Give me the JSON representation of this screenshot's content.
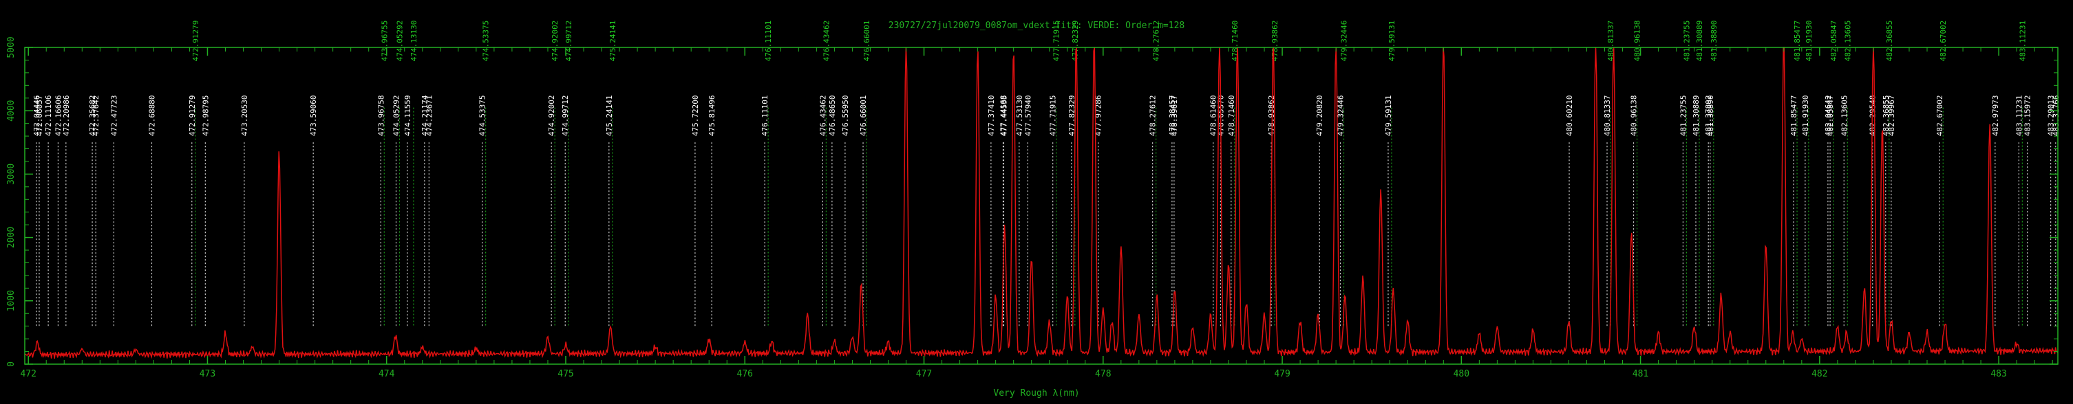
{
  "colors": {
    "background": "#000000",
    "axis": "#22b022",
    "spectrum": "#e01010",
    "label_white": "#ffffff",
    "label_green": "#22cc22"
  },
  "chart_data": {
    "type": "line",
    "title": "230727/27jul20079_0087om_vdext.fits: VERDE: Order m=128",
    "xlabel": "Very Rough λ(nm)",
    "ylabel": "",
    "xlim": [
      471.98,
      483.33
    ],
    "ylim": [
      0,
      5000
    ],
    "x_ticks": [
      472,
      473,
      474,
      475,
      476,
      477,
      478,
      479,
      480,
      481,
      482,
      483
    ],
    "x_tick_labels": [
      "472",
      "473",
      "474",
      "475",
      "476",
      "477",
      "478",
      "479",
      "480",
      "481",
      "482",
      "483"
    ],
    "y_ticks": [
      0,
      1000,
      2000,
      3000,
      4000,
      5000
    ],
    "y_tick_labels": [
      "0",
      "1000",
      "2000",
      "3000",
      "4000",
      "5000"
    ],
    "grid": false,
    "series": [
      {
        "values_baseline": 150,
        "peaks": [
          [
            472.05,
            200
          ],
          [
            472.3,
            90
          ],
          [
            472.6,
            80
          ],
          [
            473.1,
            330
          ],
          [
            473.25,
            120
          ],
          [
            473.4,
            3200
          ],
          [
            474.05,
            300
          ],
          [
            474.2,
            110
          ],
          [
            474.5,
            90
          ],
          [
            474.9,
            260
          ],
          [
            475.0,
            140
          ],
          [
            475.25,
            430
          ],
          [
            475.5,
            110
          ],
          [
            475.8,
            230
          ],
          [
            476.0,
            180
          ],
          [
            476.15,
            190
          ],
          [
            476.35,
            620
          ],
          [
            476.5,
            200
          ],
          [
            476.6,
            260
          ],
          [
            476.65,
            1100
          ],
          [
            476.8,
            180
          ],
          [
            476.9,
            5000
          ],
          [
            477.3,
            4850
          ],
          [
            477.4,
            900
          ],
          [
            477.45,
            2000
          ],
          [
            477.5,
            4800
          ],
          [
            477.6,
            1500
          ],
          [
            477.7,
            500
          ],
          [
            477.8,
            900
          ],
          [
            477.85,
            5000
          ],
          [
            477.95,
            5000
          ],
          [
            478.0,
            700
          ],
          [
            478.05,
            500
          ],
          [
            478.1,
            1700
          ],
          [
            478.2,
            600
          ],
          [
            478.3,
            900
          ],
          [
            478.4,
            1000
          ],
          [
            478.5,
            400
          ],
          [
            478.6,
            600
          ],
          [
            478.65,
            5000
          ],
          [
            478.7,
            1400
          ],
          [
            478.75,
            5000
          ],
          [
            478.8,
            800
          ],
          [
            478.9,
            600
          ],
          [
            478.95,
            5000
          ],
          [
            479.1,
            500
          ],
          [
            479.2,
            600
          ],
          [
            479.3,
            5000
          ],
          [
            479.35,
            900
          ],
          [
            479.45,
            1200
          ],
          [
            479.55,
            2600
          ],
          [
            479.62,
            1000
          ],
          [
            479.7,
            500
          ],
          [
            479.9,
            5000
          ],
          [
            480.1,
            300
          ],
          [
            480.2,
            400
          ],
          [
            480.4,
            350
          ],
          [
            480.6,
            500
          ],
          [
            480.75,
            5000
          ],
          [
            480.85,
            4850
          ],
          [
            480.95,
            1900
          ],
          [
            481.1,
            300
          ],
          [
            481.3,
            400
          ],
          [
            481.45,
            900
          ],
          [
            481.5,
            300
          ],
          [
            481.7,
            1700
          ],
          [
            481.8,
            5000
          ],
          [
            481.85,
            300
          ],
          [
            481.9,
            200
          ],
          [
            482.1,
            400
          ],
          [
            482.15,
            300
          ],
          [
            482.25,
            1000
          ],
          [
            482.3,
            5000
          ],
          [
            482.35,
            3600
          ],
          [
            482.4,
            500
          ],
          [
            482.5,
            300
          ],
          [
            482.6,
            300
          ],
          [
            482.7,
            450
          ],
          [
            482.95,
            3600
          ],
          [
            483.1,
            120
          ]
        ]
      }
    ],
    "annotations": [
      {
        "x": 472.04446,
        "label": "472.04446",
        "color": "white"
      },
      {
        "x": 472.06057,
        "label": "472.06057",
        "color": "white"
      },
      {
        "x": 472.11106,
        "label": "472.11106",
        "color": "white"
      },
      {
        "x": 472.16606,
        "label": "472.16606",
        "color": "white"
      },
      {
        "x": 472.20986,
        "label": "472.20986",
        "color": "white"
      },
      {
        "x": 472.35682,
        "label": "472.35682",
        "color": "white"
      },
      {
        "x": 472.37642,
        "label": "472.37642",
        "color": "white"
      },
      {
        "x": 472.47723,
        "label": "472.47723",
        "color": "white"
      },
      {
        "x": 472.6888,
        "label": "472.68880",
        "color": "white"
      },
      {
        "x": 472.91279,
        "label": "472.91279",
        "color": "white"
      },
      {
        "x": 472.91279,
        "label": "472.91279",
        "color": "green"
      },
      {
        "x": 472.98795,
        "label": "472.98795",
        "color": "white"
      },
      {
        "x": 473.2053,
        "label": "473.20530",
        "color": "white"
      },
      {
        "x": 473.5906,
        "label": "473.59060",
        "color": "white"
      },
      {
        "x": 473.96758,
        "label": "473.96758",
        "color": "white"
      },
      {
        "x": 473.96755,
        "label": "473.96755",
        "color": "green"
      },
      {
        "x": 474.05292,
        "label": "474.05292",
        "color": "white"
      },
      {
        "x": 474.05292,
        "label": "474.05292",
        "color": "green"
      },
      {
        "x": 474.11559,
        "label": "474.11559",
        "color": "white"
      },
      {
        "x": 474.1313,
        "label": "474.13130",
        "color": "green"
      },
      {
        "x": 474.21174,
        "label": "474.21174",
        "color": "white"
      },
      {
        "x": 474.23671,
        "label": "474.23671",
        "color": "white"
      },
      {
        "x": 474.53375,
        "label": "474.53375",
        "color": "white"
      },
      {
        "x": 474.53375,
        "label": "474.53375",
        "color": "green"
      },
      {
        "x": 474.92002,
        "label": "474.92002",
        "color": "white"
      },
      {
        "x": 474.92002,
        "label": "474.92002",
        "color": "green"
      },
      {
        "x": 474.99712,
        "label": "474.99712",
        "color": "white"
      },
      {
        "x": 474.99712,
        "label": "474.99712",
        "color": "green"
      },
      {
        "x": 475.24141,
        "label": "475.24141",
        "color": "white"
      },
      {
        "x": 475.24141,
        "label": "475.24141",
        "color": "green"
      },
      {
        "x": 475.722,
        "label": "475.72200",
        "color": "white"
      },
      {
        "x": 475.81496,
        "label": "475.81496",
        "color": "white"
      },
      {
        "x": 476.11101,
        "label": "476.11101",
        "color": "white"
      },
      {
        "x": 476.11101,
        "label": "476.11101",
        "color": "green"
      },
      {
        "x": 476.43462,
        "label": "476.43462",
        "color": "white"
      },
      {
        "x": 476.43462,
        "label": "476.43462",
        "color": "green"
      },
      {
        "x": 476.4865,
        "label": "476.48650",
        "color": "white"
      },
      {
        "x": 476.5595,
        "label": "476.55950",
        "color": "white"
      },
      {
        "x": 476.66001,
        "label": "476.66001",
        "color": "white"
      },
      {
        "x": 476.66001,
        "label": "476.66001",
        "color": "green"
      },
      {
        "x": 477.3741,
        "label": "477.37410",
        "color": "white"
      },
      {
        "x": 477.44168,
        "label": "477.44168",
        "color": "white"
      },
      {
        "x": 477.44535,
        "label": "477.44535",
        "color": "white"
      },
      {
        "x": 477.5313,
        "label": "477.53130",
        "color": "white"
      },
      {
        "x": 477.5794,
        "label": "477.57940",
        "color": "white"
      },
      {
        "x": 477.71915,
        "label": "477.71915",
        "color": "white"
      },
      {
        "x": 477.71915,
        "label": "477.71915",
        "color": "green"
      },
      {
        "x": 477.82329,
        "label": "477.82329",
        "color": "white"
      },
      {
        "x": 477.82329,
        "label": "477.82329",
        "color": "green"
      },
      {
        "x": 477.97286,
        "label": "477.97286",
        "color": "white"
      },
      {
        "x": 478.27612,
        "label": "478.27612",
        "color": "white"
      },
      {
        "x": 478.27612,
        "label": "478.27612",
        "color": "green"
      },
      {
        "x": 478.38457,
        "label": "478.38457",
        "color": "white"
      },
      {
        "x": 478.39617,
        "label": "478.39617",
        "color": "white"
      },
      {
        "x": 478.6146,
        "label": "478.61460",
        "color": "white"
      },
      {
        "x": 478.6557,
        "label": "478.65570",
        "color": "white"
      },
      {
        "x": 478.7146,
        "label": "478.71460",
        "color": "white"
      },
      {
        "x": 478.7146,
        "label": "478.71460",
        "color": "green"
      },
      {
        "x": 478.93862,
        "label": "478.93862",
        "color": "white"
      },
      {
        "x": 478.93862,
        "label": "478.93862",
        "color": "green"
      },
      {
        "x": 479.2082,
        "label": "479.20820",
        "color": "white"
      },
      {
        "x": 479.32446,
        "label": "479.32446",
        "color": "white"
      },
      {
        "x": 479.32446,
        "label": "479.32446",
        "color": "green"
      },
      {
        "x": 479.59131,
        "label": "479.59131",
        "color": "white"
      },
      {
        "x": 479.59131,
        "label": "479.59131",
        "color": "green"
      },
      {
        "x": 480.6021,
        "label": "480.60210",
        "color": "white"
      },
      {
        "x": 480.81337,
        "label": "480.81337",
        "color": "white"
      },
      {
        "x": 480.81337,
        "label": "480.81337",
        "color": "green"
      },
      {
        "x": 480.96138,
        "label": "480.96138",
        "color": "white"
      },
      {
        "x": 480.96138,
        "label": "480.96138",
        "color": "green"
      },
      {
        "x": 481.23755,
        "label": "481.23755",
        "color": "white"
      },
      {
        "x": 481.23755,
        "label": "481.23755",
        "color": "green"
      },
      {
        "x": 481.30889,
        "label": "481.30889",
        "color": "white"
      },
      {
        "x": 481.30889,
        "label": "481.30889",
        "color": "green"
      },
      {
        "x": 481.37892,
        "label": "481.37892",
        "color": "white"
      },
      {
        "x": 481.3889,
        "label": "481.38890",
        "color": "white"
      },
      {
        "x": 481.3889,
        "label": "481.38890",
        "color": "green"
      },
      {
        "x": 481.85477,
        "label": "481.85477",
        "color": "white"
      },
      {
        "x": 481.85477,
        "label": "481.85477",
        "color": "green"
      },
      {
        "x": 481.9193,
        "label": "481.91930",
        "color": "white"
      },
      {
        "x": 481.9193,
        "label": "481.91930",
        "color": "green"
      },
      {
        "x": 482.04642,
        "label": "482.04642",
        "color": "white"
      },
      {
        "x": 482.05847,
        "label": "482.05847",
        "color": "white"
      },
      {
        "x": 482.05847,
        "label": "482.05847",
        "color": "green"
      },
      {
        "x": 482.13605,
        "label": "482.13605",
        "color": "white"
      },
      {
        "x": 482.13605,
        "label": "482.13605",
        "color": "green"
      },
      {
        "x": 482.29548,
        "label": "482.29548",
        "color": "white"
      },
      {
        "x": 482.36855,
        "label": "482.36855",
        "color": "white"
      },
      {
        "x": 482.36855,
        "label": "482.36855",
        "color": "green"
      },
      {
        "x": 482.39967,
        "label": "482.39967",
        "color": "white"
      },
      {
        "x": 482.67002,
        "label": "482.67002",
        "color": "white"
      },
      {
        "x": 482.67002,
        "label": "482.67002",
        "color": "green"
      },
      {
        "x": 482.97973,
        "label": "482.97973",
        "color": "white"
      },
      {
        "x": 483.11231,
        "label": "483.11231",
        "color": "white"
      },
      {
        "x": 483.11231,
        "label": "483.11231",
        "color": "green"
      },
      {
        "x": 483.15972,
        "label": "483.15972",
        "color": "white"
      },
      {
        "x": 483.29013,
        "label": "483.29013",
        "color": "white"
      },
      {
        "x": 483.31766,
        "label": "483.31766",
        "color": "white"
      }
    ]
  }
}
